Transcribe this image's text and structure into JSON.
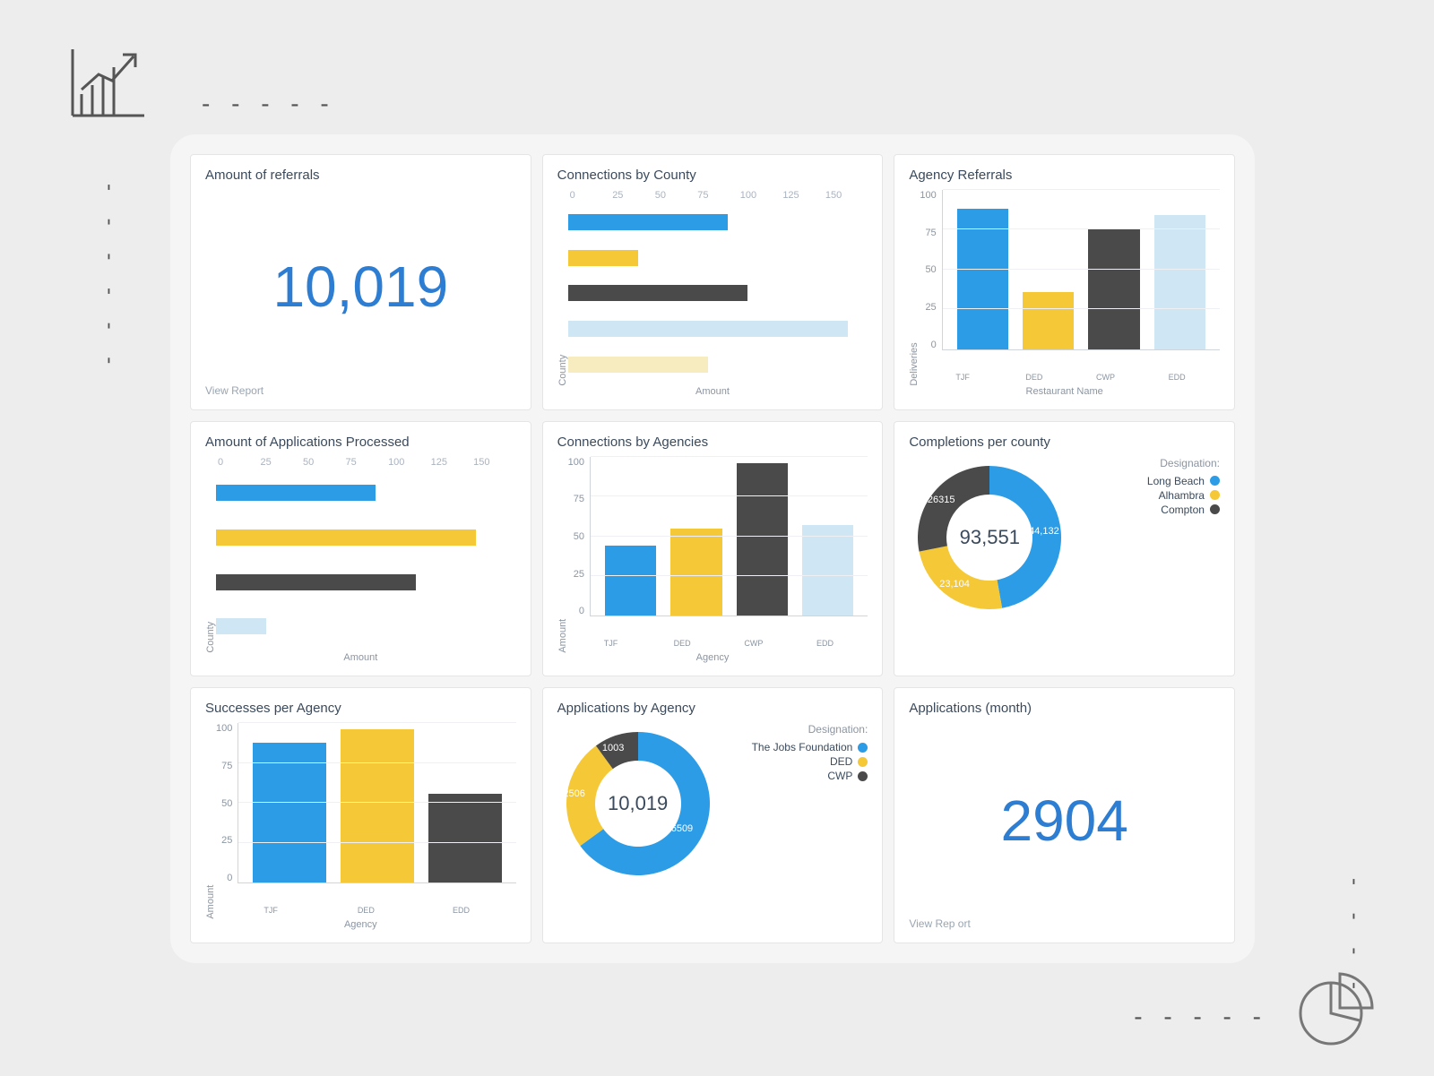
{
  "colors": {
    "blue": "#2d9ce6",
    "yellow": "#f5c838",
    "dark": "#4a4a4a",
    "lightblue": "#cfe7f5",
    "cream": "#f7ebc0",
    "accent_text": "#2d7dd2",
    "bg": "#ededed",
    "panel_bg": "#f5f5f5",
    "card_bg": "#ffffff"
  },
  "cards": {
    "referrals": {
      "title": "Amount of referrals",
      "value": "10,019",
      "footer": "View Report"
    },
    "connections_county": {
      "title": "Connections by County",
      "type": "hbar",
      "xlabel": "Amount",
      "ylabel": "County",
      "ticks": [
        "0",
        "25",
        "50",
        "75",
        "100",
        "125",
        "150"
      ],
      "xmax": 150,
      "bars": [
        {
          "value": 80,
          "color": "#2d9ce6"
        },
        {
          "value": 35,
          "color": "#f5c838"
        },
        {
          "value": 90,
          "color": "#4a4a4a"
        },
        {
          "value": 140,
          "color": "#cfe7f5"
        },
        {
          "value": 70,
          "color": "#f7ebc0"
        }
      ]
    },
    "agency_referrals": {
      "title": "Agency Referrals",
      "type": "vbar",
      "ylabel": "Deliveries",
      "xlabel": "Restaurant Name",
      "yticks": [
        "0",
        "25",
        "50",
        "75",
        "100"
      ],
      "ymax": 100,
      "bars": [
        {
          "label": "TJF",
          "value": 88,
          "color": "#2d9ce6"
        },
        {
          "label": "DED",
          "value": 36,
          "color": "#f5c838"
        },
        {
          "label": "CWP",
          "value": 76,
          "color": "#4a4a4a"
        },
        {
          "label": "EDD",
          "value": 84,
          "color": "#cfe7f5"
        }
      ]
    },
    "applications_processed": {
      "title": "Amount of Applications Processed",
      "type": "hbar",
      "xlabel": "Amount",
      "ylabel": "County",
      "ticks": [
        "0",
        "25",
        "50",
        "75",
        "100",
        "125",
        "150"
      ],
      "xmax": 150,
      "bars": [
        {
          "value": 80,
          "color": "#2d9ce6"
        },
        {
          "value": 130,
          "color": "#f5c838"
        },
        {
          "value": 100,
          "color": "#4a4a4a"
        },
        {
          "value": 25,
          "color": "#cfe7f5"
        }
      ]
    },
    "connections_agencies": {
      "title": "Connections by Agencies",
      "type": "vbar",
      "ylabel": "Amount",
      "xlabel": "Agency",
      "yticks": [
        "0",
        "25",
        "50",
        "75",
        "100"
      ],
      "ymax": 100,
      "bars": [
        {
          "label": "TJF",
          "value": 44,
          "color": "#2d9ce6"
        },
        {
          "label": "DED",
          "value": 55,
          "color": "#f5c838"
        },
        {
          "label": "CWP",
          "value": 96,
          "color": "#4a4a4a"
        },
        {
          "label": "EDD",
          "value": 57,
          "color": "#cfe7f5"
        }
      ]
    },
    "completions_county": {
      "title": "Completions per county",
      "type": "donut",
      "center": "93,551",
      "legend_title": "Designation:",
      "segments": [
        {
          "label": "Long Beach",
          "value": 44132,
          "display": "44,132",
          "color": "#2d9ce6"
        },
        {
          "label": "Alhambra",
          "value": 23104,
          "display": "23,104",
          "color": "#f5c838"
        },
        {
          "label": "Compton",
          "value": 26315,
          "display": "26315",
          "color": "#4a4a4a"
        }
      ]
    },
    "successes_agency": {
      "title": "Successes per Agency",
      "type": "vbar",
      "ylabel": "Amount",
      "xlabel": "Agency",
      "yticks": [
        "0",
        "25",
        "50",
        "75",
        "100"
      ],
      "ymax": 100,
      "bars": [
        {
          "label": "TJF",
          "value": 88,
          "color": "#2d9ce6"
        },
        {
          "label": "DED",
          "value": 96,
          "color": "#f5c838"
        },
        {
          "label": "EDD",
          "value": 56,
          "color": "#4a4a4a"
        }
      ]
    },
    "applications_agency": {
      "title": "Applications by Agency",
      "type": "donut",
      "center": "10,019",
      "legend_title": "Designation:",
      "segments": [
        {
          "label": "The Jobs Foundation",
          "value": 6509,
          "display": "6509",
          "color": "#2d9ce6"
        },
        {
          "label": "DED",
          "value": 2506,
          "display": "2506",
          "color": "#f5c838"
        },
        {
          "label": "CWP",
          "value": 1003,
          "display": "1003",
          "color": "#4a4a4a"
        }
      ]
    },
    "applications_month": {
      "title": "Applications (month)",
      "value": "2904",
      "footer": "View Rep ort"
    }
  }
}
